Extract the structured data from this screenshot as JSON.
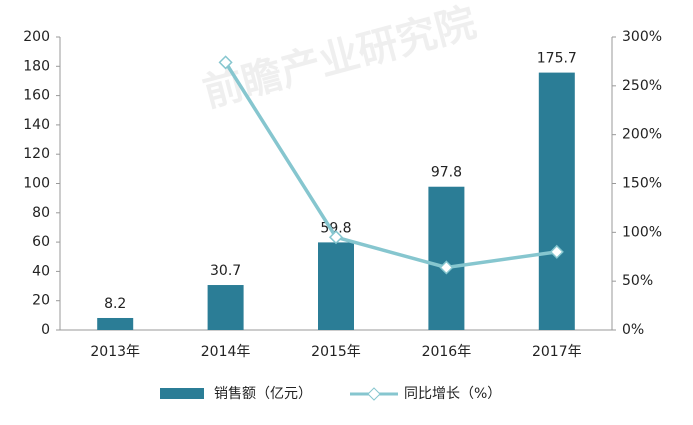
{
  "chart_data": {
    "type": "bar",
    "watermark": "前瞻产业研究院",
    "categories": [
      "2013年",
      "2014年",
      "2015年",
      "2016年",
      "2017年"
    ],
    "series": [
      {
        "name": "销售额（亿元）",
        "type": "bar",
        "color": "#2b7d96",
        "values": [
          8.2,
          30.7,
          59.8,
          97.8,
          175.7
        ]
      },
      {
        "name": "同比增长（%）",
        "type": "line",
        "axis": "y2",
        "color": "#86c6cf",
        "values": [
          null,
          274,
          95,
          64,
          80
        ]
      }
    ],
    "ylim": [
      0,
      200
    ],
    "yticks": [
      0,
      20,
      40,
      60,
      80,
      100,
      120,
      140,
      160,
      180,
      200
    ],
    "y2lim": [
      0,
      300
    ],
    "y2ticks": [
      {
        "value": 0,
        "label": "0%"
      },
      {
        "value": 50,
        "label": "50%"
      },
      {
        "value": 100,
        "label": "100%"
      },
      {
        "value": 150,
        "label": "150%"
      },
      {
        "value": 200,
        "label": "200%"
      },
      {
        "value": 250,
        "label": "250%"
      },
      {
        "value": 300,
        "label": "300%"
      }
    ],
    "grid": false
  }
}
